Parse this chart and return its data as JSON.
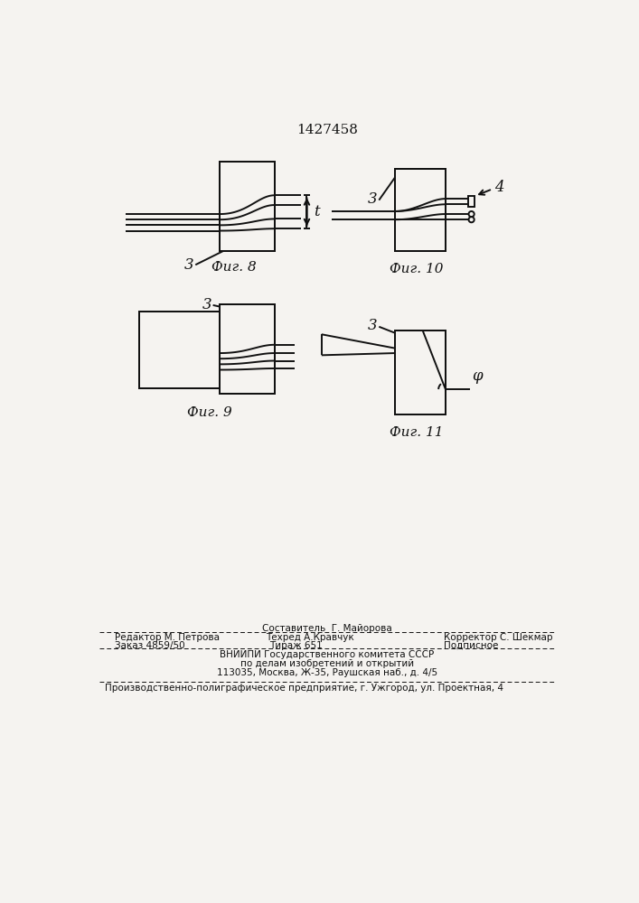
{
  "title": "1427458",
  "bg_color": "#f5f3f0",
  "line_color": "#111111",
  "fig8_label": "Фиг. 8",
  "fig9_label": "Фиг. 9",
  "fig10_label": "Фиг. 10",
  "fig11_label": "Фиг. 11",
  "label_3": "3",
  "label_4": "4",
  "label_t": "t",
  "label_phi": "φ",
  "footer_line1": "Составитель  Г. Майорова",
  "footer_line2_left": "Редактор М. Петрова",
  "footer_line2_mid": "Техред А.Кравчук",
  "footer_line2_right": "Корректор С. Шекмар",
  "footer_line3_left": "Заказ 4859/50",
  "footer_line3_mid": "Тираж 651",
  "footer_line3_right": "Подписное",
  "footer_line4": "ВНИИПИ Государственного комитета СССР",
  "footer_line5": "по делам изобретений и открытий",
  "footer_line6": "113035, Москва, Ж-35, Раушская наб., д. 4/5",
  "footer_line7": "Производственно-полиграфическое предприятие, г. Ужгород, ул. Проектная, 4"
}
